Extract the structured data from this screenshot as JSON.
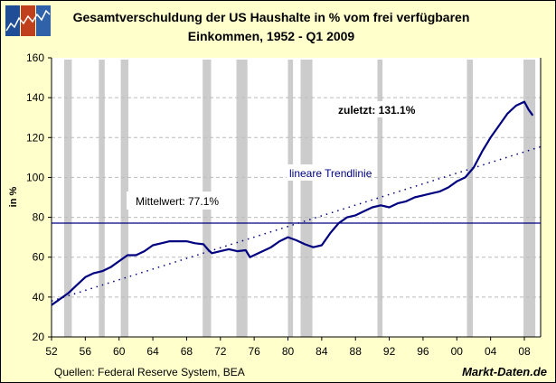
{
  "chart_data": {
    "type": "line",
    "title": "Gesamtverschuldung der US Haushalte in % vom frei verfügbaren Einkommen, 1952 - Q1 2009",
    "title_lines": [
      "Gesamtverschuldung der US Haushalte in % vom frei verfügbaren",
      "Einkommen, 1952 - Q1 2009"
    ],
    "xlabel": "",
    "ylabel": "in %",
    "xlim": [
      1952,
      2010
    ],
    "ylim": [
      20,
      160
    ],
    "x_ticks": [
      1952,
      1956,
      1960,
      1964,
      1968,
      1972,
      1976,
      1980,
      1984,
      1988,
      1992,
      1996,
      2000,
      2004,
      2008
    ],
    "x_tick_labels": [
      "52",
      "56",
      "60",
      "64",
      "68",
      "72",
      "76",
      "80",
      "84",
      "88",
      "92",
      "96",
      "00",
      "04",
      "08"
    ],
    "y_ticks": [
      20,
      40,
      60,
      80,
      100,
      120,
      140,
      160
    ],
    "y_tick_labels": [
      "20",
      "40",
      "60",
      "80",
      "100",
      "120",
      "140",
      "160"
    ],
    "grid": "horizontal dashed",
    "series": [
      {
        "x": [
          1952,
          1953,
          1954,
          1955,
          1956,
          1957,
          1958,
          1959,
          1960,
          1961,
          1962,
          1963,
          1964,
          1965,
          1966,
          1967,
          1968,
          1969,
          1970,
          1970.6,
          1971,
          1972,
          1973,
          1974,
          1975,
          1975.5,
          1976,
          1977,
          1978,
          1979,
          1980,
          1981,
          1982,
          1983,
          1984,
          1985,
          1986,
          1987,
          1988,
          1989,
          1990,
          1991,
          1992,
          1993,
          1994,
          1995,
          1996,
          1997,
          1998,
          1999,
          2000,
          2001,
          2002,
          2003,
          2004,
          2005,
          2006,
          2007,
          2008,
          2008.5,
          2009
        ],
        "values": [
          36,
          39,
          42,
          46,
          50,
          52,
          53,
          55,
          58,
          61,
          61,
          63,
          66,
          67,
          68,
          68,
          68,
          67,
          66.5,
          63.5,
          62,
          63,
          64,
          63,
          63.5,
          60,
          61,
          63,
          65,
          68,
          70,
          68.5,
          66.5,
          65,
          66,
          72,
          77,
          80,
          81,
          83,
          85,
          86,
          85,
          87,
          88,
          90,
          91,
          92,
          93,
          95,
          98,
          100,
          105,
          113,
          120,
          126,
          132,
          136,
          138,
          134,
          131.1
        ],
        "color": "#000080",
        "style": "solid"
      }
    ],
    "trendline": {
      "label": "lineare Trendlinie",
      "x": [
        1952,
        2010
      ],
      "values": [
        38,
        115.5
      ],
      "color": "#000080",
      "style": "dotted"
    },
    "mean_line": {
      "label": "Mittelwert: 77.1%",
      "value": 77.1,
      "color": "#000080"
    },
    "last_annotation": "zuletzt: 131.1%",
    "recessions": [
      [
        1953.5,
        1954.4
      ],
      [
        1957.6,
        1958.3
      ],
      [
        1960.2,
        1961.1
      ],
      [
        1969.9,
        1970.9
      ],
      [
        1973.9,
        1975.2
      ],
      [
        1980.0,
        1980.6
      ],
      [
        1981.5,
        1982.9
      ],
      [
        1990.6,
        1991.2
      ],
      [
        2001.2,
        2001.9
      ],
      [
        2007.9,
        2009.3
      ]
    ],
    "recession_color": "#CCCCCC"
  },
  "footer": {
    "source": "Quellen: Federal Reserve System, BEA",
    "brand": "Markt-Daten.de"
  },
  "colors": {
    "background": "#FFFFCC",
    "plot": "#FFFFFF",
    "logo_blue": "#1F4E96",
    "logo_red": "#C0401E"
  }
}
